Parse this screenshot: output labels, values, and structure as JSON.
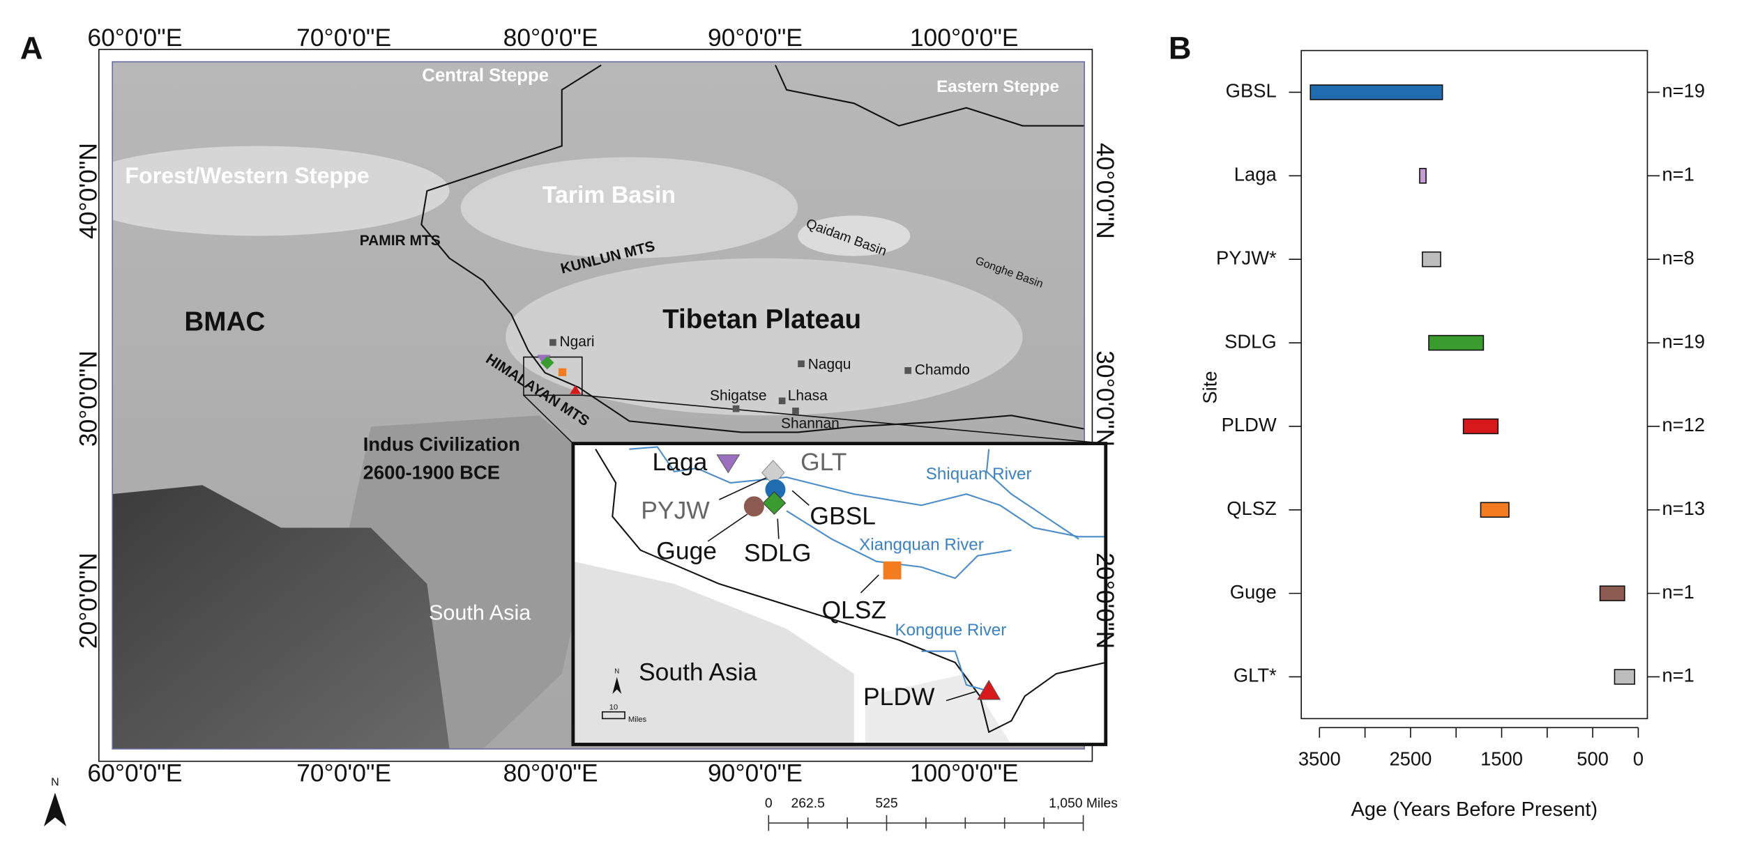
{
  "panel_labels": [
    "A",
    "B"
  ],
  "map": {
    "lon_labels": [
      "60°0'0\"E",
      "70°0'0\"E",
      "80°0'0\"E",
      "90°0'0\"E",
      "100°0'0\"E"
    ],
    "lat_labels": [
      "40°0'0\"N",
      "30°0'0\"N",
      "20°0'0\"N"
    ],
    "regions": [
      "Central Steppe",
      "Eastern Steppe",
      "Forest/Western Steppe",
      "Tarim Basin",
      "PAMIR MTS",
      "KUNLUN MTS",
      "Qaidam Basin",
      "Gonghe Basin",
      "BMAC",
      "Tibetan Plateau",
      "HIMALAYAN MTS",
      "Indus Civilization",
      "2600-1900 BCE",
      "South Asia"
    ],
    "cities": [
      "Ngari",
      "Nagqu",
      "Chamdo",
      "Shigatse",
      "Lhasa",
      "Shannan"
    ],
    "inset": {
      "sites": [
        "Laga",
        "GLT",
        "PYJW",
        "GBSL",
        "Guge",
        "SDLG",
        "QLSZ",
        "PLDW"
      ],
      "rivers": [
        "Shiquan River",
        "Xiangquan River",
        "Kongque River"
      ],
      "region": "South Asia",
      "north": "N",
      "scale_value": "10",
      "scale_unit": "Miles"
    },
    "scale_bar": [
      "0",
      "262.5",
      "525",
      "1,050 Miles"
    ],
    "north": "N"
  },
  "chart_data": {
    "type": "floating-bar",
    "categories": [
      "GBSL",
      "Laga",
      "PYJW*",
      "SDLG",
      "PLDW",
      "QLSZ",
      "Guge",
      "GLT*"
    ],
    "start": [
      3600,
      2400,
      2370,
      2300,
      1920,
      1730,
      420,
      260
    ],
    "end": [
      2150,
      2330,
      2170,
      1700,
      1540,
      1420,
      150,
      40
    ],
    "colors": [
      "#1f6db0",
      "#c79bd6",
      "#bdbdbd",
      "#3a9c2f",
      "#d7191c",
      "#f47c20",
      "#8c5a50",
      "#bdbdbd"
    ],
    "n_labels": [
      "n=19",
      "n=1",
      "n=8",
      "n=19",
      "n=12",
      "n=13",
      "n=1",
      "n=1"
    ],
    "xlabel": "Age (Years Before Present)",
    "ylabel": "Site",
    "xlim": [
      3700,
      -100
    ],
    "xticks": [
      3500,
      2500,
      1500,
      500,
      0
    ],
    "xminor_ticks": [
      3000,
      2000,
      1000
    ]
  }
}
